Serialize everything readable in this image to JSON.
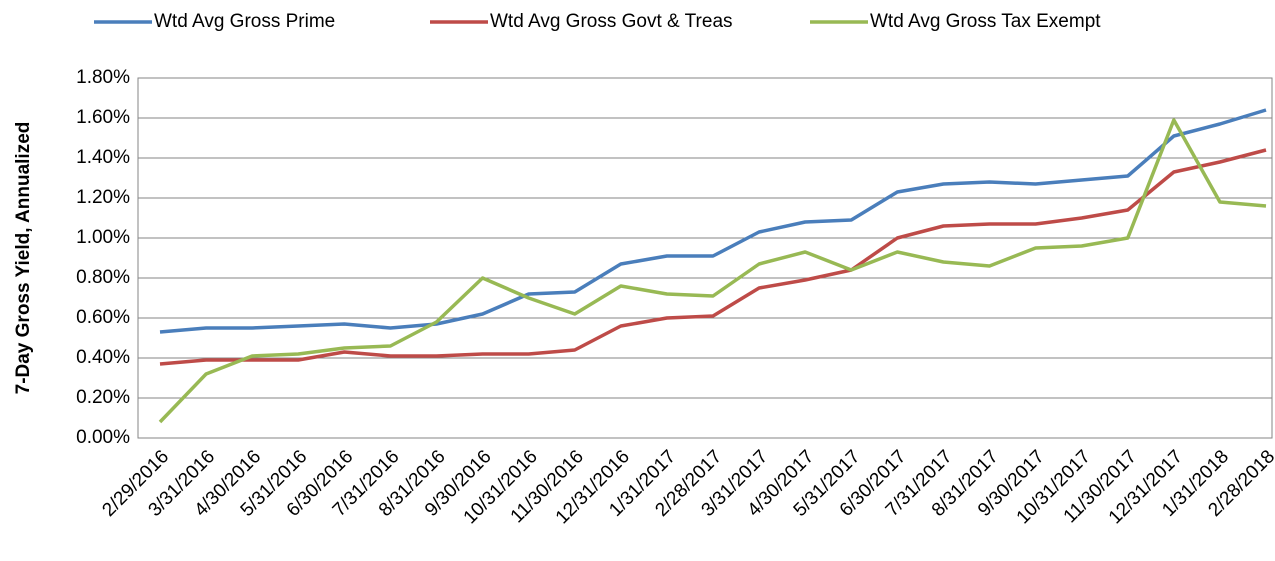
{
  "chart_data": {
    "type": "line",
    "y_label": "7-Day Gross Yield, Annualized",
    "categories": [
      "2/29/2016",
      "3/31/2016",
      "4/30/2016",
      "5/31/2016",
      "6/30/2016",
      "7/31/2016",
      "8/31/2016",
      "9/30/2016",
      "10/31/2016",
      "11/30/2016",
      "12/31/2016",
      "1/31/2017",
      "2/28/2017",
      "3/31/2017",
      "4/30/2017",
      "5/31/2017",
      "6/30/2017",
      "7/31/2017",
      "8/31/2017",
      "9/30/2017",
      "10/31/2017",
      "11/30/2017",
      "12/31/2017",
      "1/31/2018",
      "2/28/2018"
    ],
    "series": [
      {
        "name": "Wtd Avg Gross Prime",
        "color": "#4a7ebb",
        "values": [
          0.53,
          0.55,
          0.55,
          0.56,
          0.57,
          0.55,
          0.57,
          0.62,
          0.72,
          0.73,
          0.87,
          0.91,
          0.91,
          1.03,
          1.08,
          1.09,
          1.23,
          1.27,
          1.28,
          1.27,
          1.29,
          1.31,
          1.51,
          1.57,
          1.64
        ]
      },
      {
        "name": "Wtd Avg Gross Govt & Treas",
        "color": "#be4b48",
        "values": [
          0.37,
          0.39,
          0.39,
          0.39,
          0.43,
          0.41,
          0.41,
          0.42,
          0.42,
          0.44,
          0.56,
          0.6,
          0.61,
          0.75,
          0.79,
          0.84,
          1.0,
          1.06,
          1.07,
          1.07,
          1.1,
          1.14,
          1.33,
          1.38,
          1.44
        ]
      },
      {
        "name": "Wtd Avg Gross Tax Exempt",
        "color": "#98b954",
        "values": [
          0.08,
          0.32,
          0.41,
          0.42,
          0.45,
          0.46,
          0.58,
          0.8,
          0.7,
          0.62,
          0.76,
          0.72,
          0.71,
          0.87,
          0.93,
          0.84,
          0.93,
          0.88,
          0.86,
          0.95,
          0.96,
          1.0,
          1.59,
          1.18,
          1.16
        ]
      }
    ],
    "ylim": [
      0,
      1.8
    ],
    "yticks": [
      {
        "value": 0,
        "label": "0.00%"
      },
      {
        "value": 0.2,
        "label": "0.20%"
      },
      {
        "value": 0.4,
        "label": "0.40%"
      },
      {
        "value": 0.6,
        "label": "0.60%"
      },
      {
        "value": 0.8,
        "label": "0.80%"
      },
      {
        "value": 1.0,
        "label": "1.00%"
      },
      {
        "value": 1.2,
        "label": "1.20%"
      },
      {
        "value": 1.4,
        "label": "1.40%"
      },
      {
        "value": 1.6,
        "label": "1.60%"
      },
      {
        "value": 1.8,
        "label": "1.80%"
      }
    ],
    "grid": true,
    "legend": "top"
  }
}
